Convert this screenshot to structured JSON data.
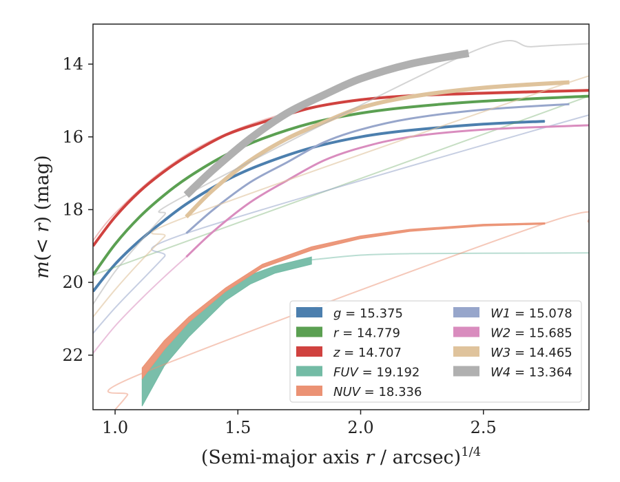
{
  "chart_data": {
    "type": "line",
    "xlabel_main": "(Semi-major axis ",
    "xlabel_var": "r",
    "xlabel_unit": " / arcsec)",
    "xlabel_exp": "1/4",
    "ylabel_m": "m",
    "ylabel_paren": "(< ",
    "ylabel_r": "r",
    "ylabel_unit": ") (mag)",
    "xlim": [
      0.91,
      2.93
    ],
    "ylim": [
      23.5,
      12.9
    ],
    "y_inverted": true,
    "xticks": [
      1.0,
      1.5,
      2.0,
      2.5
    ],
    "xtick_labels": [
      "1.0",
      "1.5",
      "2.0",
      "2.5"
    ],
    "yticks": [
      14,
      16,
      18,
      20,
      22
    ],
    "ytick_labels": [
      "14",
      "16",
      "18",
      "20",
      "22"
    ],
    "grid": false,
    "legend_position": "lower-right",
    "series": [
      {
        "name": "g",
        "value": "15.375",
        "color": "#4c7fae",
        "pale_opacity": 0.35,
        "bold_x": [
          0.91,
          1.0,
          1.1,
          1.2,
          1.3,
          1.45,
          1.6,
          1.8,
          2.0,
          2.2,
          2.5,
          2.75
        ],
        "bold_y": [
          20.25,
          19.5,
          18.85,
          18.3,
          17.8,
          17.2,
          16.75,
          16.3,
          16.0,
          15.82,
          15.65,
          15.57
        ],
        "bold_width": 4,
        "pale_x": [
          0.91,
          1.0,
          1.1,
          1.2,
          1.3,
          1.45,
          1.6,
          1.8,
          2.0,
          2.2,
          2.5,
          2.75
        ],
        "pale_y": [
          20.25,
          19.5,
          18.85,
          18.3,
          17.8,
          17.2,
          16.75,
          16.3,
          16.0,
          15.82,
          15.65,
          15.57
        ]
      },
      {
        "name": "r",
        "value": "14.779",
        "color": "#5ba052",
        "pale_opacity": 0.35,
        "bold_x": [
          0.91,
          1.0,
          1.1,
          1.2,
          1.3,
          1.45,
          1.6,
          1.8,
          2.0,
          2.2,
          2.5,
          2.93
        ],
        "bold_y": [
          19.8,
          18.95,
          18.2,
          17.6,
          17.1,
          16.5,
          16.05,
          15.62,
          15.35,
          15.18,
          15.02,
          14.88
        ],
        "bold_width": 4,
        "pale_x": [
          0.91,
          2.93
        ],
        "pale_y": [
          19.8,
          14.88
        ]
      },
      {
        "name": "z",
        "value": "14.707",
        "color": "#d0423f",
        "pale_opacity": 0.35,
        "bold_x": [
          0.91,
          1.0,
          1.1,
          1.2,
          1.3,
          1.45,
          1.6,
          1.8,
          2.0,
          2.2,
          2.5,
          2.93
        ],
        "bold_y": [
          19.0,
          18.2,
          17.5,
          16.95,
          16.5,
          15.95,
          15.6,
          15.2,
          14.98,
          14.87,
          14.8,
          14.72
        ],
        "bold_width": 4,
        "pale_x": [
          0.91,
          1.0,
          1.2,
          1.45,
          1.8,
          2.2,
          2.93
        ],
        "pale_y": [
          18.85,
          18.1,
          16.9,
          15.92,
          15.18,
          14.85,
          14.7
        ]
      },
      {
        "name": "FUV",
        "value": "19.192",
        "color": "#73bba5",
        "pale_opacity": 0.5,
        "band_x": [
          1.11,
          1.2,
          1.3,
          1.45,
          1.55,
          1.65,
          1.8
        ],
        "band_low": [
          23.4,
          22.3,
          21.5,
          20.5,
          20.05,
          19.75,
          19.5
        ],
        "band_high": [
          22.65,
          21.85,
          21.1,
          20.25,
          19.8,
          19.55,
          19.3
        ],
        "pale_x": [
          1.8,
          2.0,
          2.2,
          2.5,
          2.93
        ],
        "pale_y": [
          19.38,
          19.25,
          19.21,
          19.2,
          19.19
        ]
      },
      {
        "name": "NUV",
        "value": "18.336",
        "color": "#eb9274",
        "pale_opacity": 0.5,
        "band_x": [
          1.11,
          1.2,
          1.3,
          1.45,
          1.6,
          1.8,
          2.0,
          2.2,
          2.5,
          2.75
        ],
        "band_low": [
          22.65,
          21.85,
          21.1,
          20.25,
          19.6,
          19.12,
          18.8,
          18.6,
          18.45,
          18.4
        ],
        "band_high": [
          22.35,
          21.6,
          20.95,
          20.15,
          19.5,
          19.02,
          18.72,
          18.54,
          18.4,
          18.36
        ],
        "pale_x": [
          1.0,
          1.05,
          1.11,
          2.75,
          2.93
        ],
        "pale_y": [
          23.5,
          23.1,
          22.5,
          18.38,
          18.34
        ]
      },
      {
        "name": "W1",
        "value": "15.078",
        "color": "#97a6cb",
        "pale_opacity": 0.55,
        "bold_x": [
          1.29,
          1.4,
          1.55,
          1.7,
          1.85,
          2.0,
          2.2,
          2.5,
          2.85
        ],
        "bold_y": [
          18.65,
          18.0,
          17.25,
          16.7,
          16.15,
          15.8,
          15.5,
          15.25,
          15.1
        ],
        "bold_width": 3,
        "pale_x": [
          0.91,
          1.0,
          1.1,
          1.2,
          1.29,
          2.85,
          2.93
        ],
        "pale_y": [
          21.4,
          20.7,
          20.0,
          19.3,
          18.65,
          15.55,
          15.5
        ]
      },
      {
        "name": "W2",
        "value": "15.685",
        "color": "#d98cbe",
        "pale_opacity": 0.55,
        "bold_x": [
          1.29,
          1.4,
          1.55,
          1.7,
          1.85,
          2.0,
          2.2,
          2.5,
          2.93
        ],
        "bold_y": [
          19.3,
          18.6,
          17.8,
          17.2,
          16.65,
          16.3,
          16.0,
          15.8,
          15.68
        ],
        "bold_width": 3,
        "pale_x": [
          0.91,
          1.0,
          1.1,
          1.2,
          1.29
        ],
        "pale_y": [
          21.95,
          21.2,
          20.5,
          19.85,
          19.3
        ]
      },
      {
        "name": "W3",
        "value": "14.465",
        "color": "#dfc39c",
        "pale_opacity": 0.6,
        "bold_x": [
          1.29,
          1.4,
          1.55,
          1.7,
          1.85,
          2.0,
          2.2,
          2.5,
          2.85
        ],
        "bold_y": [
          18.2,
          17.45,
          16.65,
          16.05,
          15.6,
          15.2,
          14.9,
          14.65,
          14.5
        ],
        "bold_width": 6,
        "pale_x": [
          0.91,
          1.0,
          1.1,
          1.2,
          1.29,
          2.85,
          2.93
        ],
        "pale_y": [
          20.95,
          20.2,
          19.45,
          18.75,
          18.2,
          14.5,
          14.48
        ]
      },
      {
        "name": "W4",
        "value": "13.364",
        "color": "#b0b0b0",
        "pale_opacity": 0.55,
        "bold_x": [
          1.29,
          1.4,
          1.55,
          1.7,
          1.85,
          2.0,
          2.2,
          2.44
        ],
        "bold_y": [
          17.6,
          16.9,
          16.05,
          15.35,
          14.85,
          14.4,
          14.0,
          13.7
        ],
        "bold_width": 11,
        "pale_x": [
          0.91,
          1.0,
          1.1,
          1.2,
          1.29,
          2.44,
          2.7,
          2.93
        ],
        "pale_y": [
          20.6,
          19.7,
          18.9,
          18.15,
          17.6,
          13.7,
          13.52,
          13.44
        ]
      }
    ],
    "legend_order": [
      [
        0,
        1,
        2,
        3,
        4
      ],
      [
        5,
        6,
        7,
        8
      ]
    ]
  }
}
